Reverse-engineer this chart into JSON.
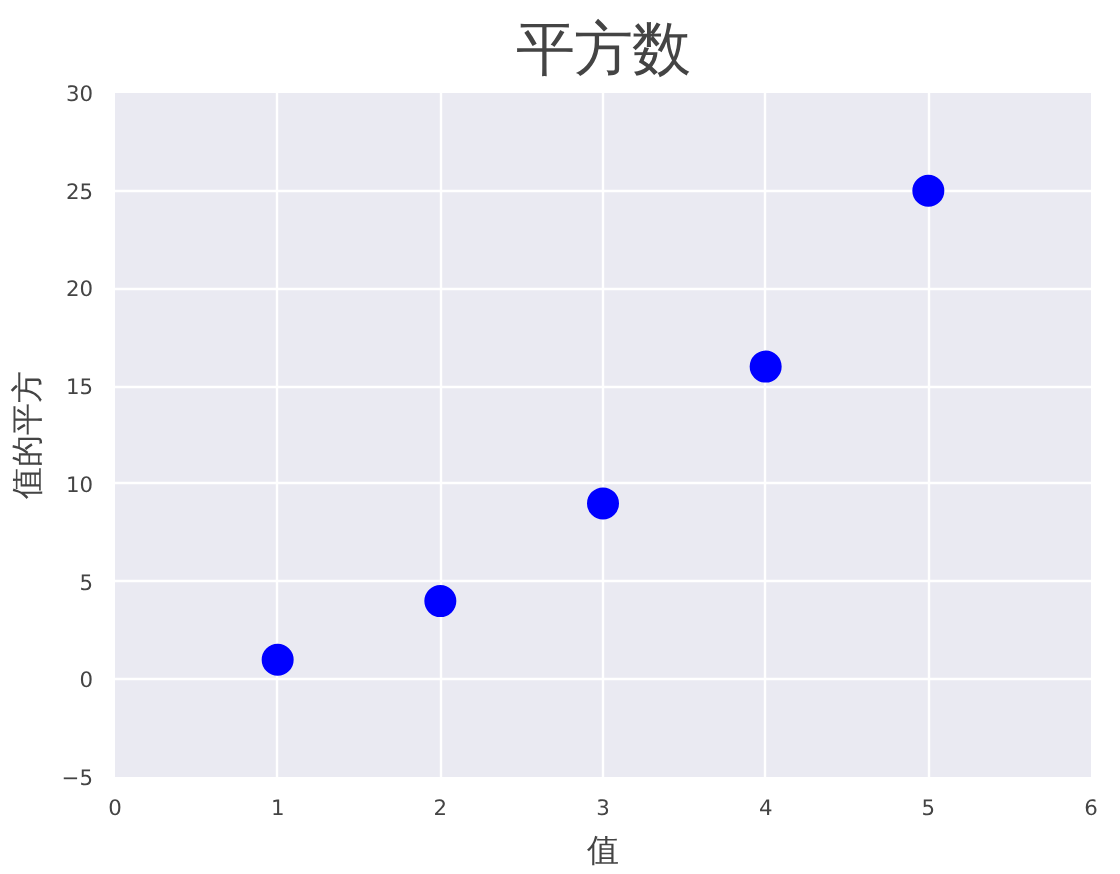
{
  "chart_data": {
    "type": "scatter",
    "title": "平方数",
    "xlabel": "值",
    "ylabel": "值的平方",
    "x": [
      1,
      2,
      3,
      4,
      5
    ],
    "series": [
      {
        "color": "#0000ff",
        "values": [
          1,
          4,
          9,
          16,
          25
        ]
      }
    ],
    "xlim": [
      0,
      6
    ],
    "ylim": [
      -5,
      30
    ],
    "xticks": [
      0,
      1,
      2,
      3,
      4,
      5,
      6
    ],
    "yticks": [
      -5,
      0,
      5,
      10,
      15,
      20,
      25,
      30
    ],
    "grid": true,
    "marker": "circle"
  }
}
